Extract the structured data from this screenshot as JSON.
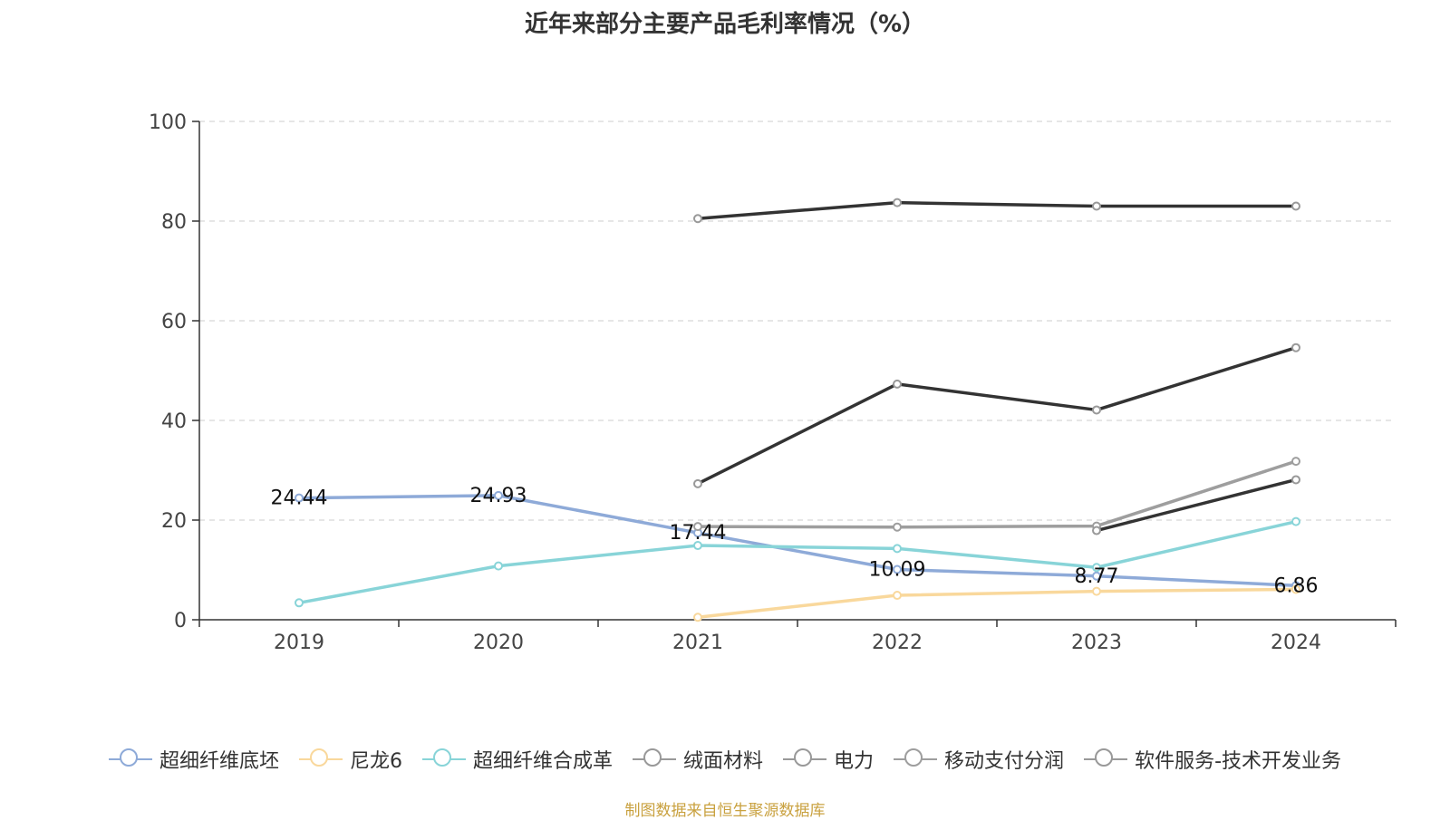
{
  "title": "近年来部分主要产品毛利率情况（%）",
  "source": "制图数据来自恒生聚源数据库",
  "chart_data": {
    "type": "line",
    "categories": [
      "2019",
      "2020",
      "2021",
      "2022",
      "2023",
      "2024"
    ],
    "ylim": [
      0,
      100
    ],
    "yticks": [
      0,
      20,
      40,
      60,
      80,
      100
    ],
    "grid": true,
    "legend_position": "bottom",
    "series": [
      {
        "name": "超细纤维底坯",
        "color": "#8eaad8",
        "values": [
          24.44,
          24.93,
          17.44,
          10.09,
          8.77,
          6.86
        ],
        "labels": [
          "24.44",
          "24.93",
          "17.44",
          "10.09",
          "8.77",
          "6.86"
        ]
      },
      {
        "name": "尼龙6",
        "color": "#f9d89c",
        "values": [
          null,
          null,
          0.5,
          4.9,
          5.7,
          6.1
        ]
      },
      {
        "name": "超细纤维合成革",
        "color": "#88d4d8",
        "values": [
          3.4,
          10.8,
          14.9,
          14.3,
          10.5,
          19.7
        ]
      },
      {
        "name": "绒面材料",
        "color": "#333333",
        "values": [
          null,
          null,
          27.3,
          47.3,
          42.1,
          54.6
        ]
      },
      {
        "name": "电力",
        "color": "#333333",
        "values": [
          null,
          null,
          80.5,
          83.7,
          83.0,
          83.0
        ]
      },
      {
        "name": "移动支付分润",
        "color": "#9e9e9e",
        "values": [
          null,
          null,
          18.7,
          18.6,
          18.8,
          31.8
        ]
      },
      {
        "name": "软件服务-技术开发业务",
        "color": "#333333",
        "values": [
          null,
          null,
          null,
          null,
          17.9,
          28.1
        ]
      }
    ]
  }
}
